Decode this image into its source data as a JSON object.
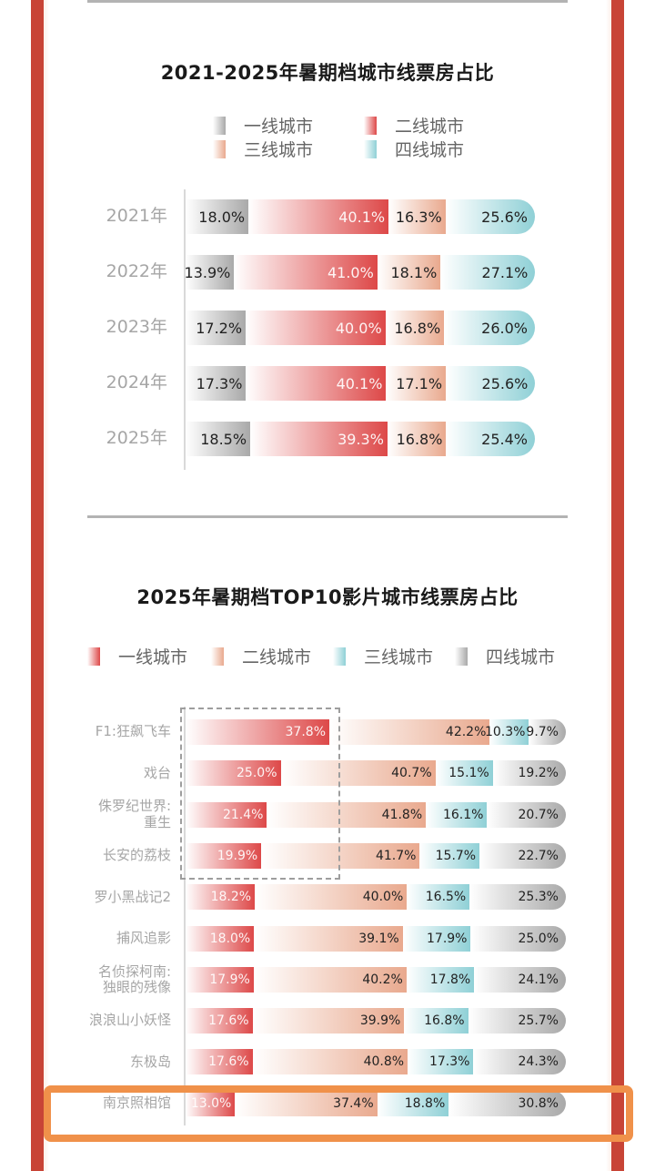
{
  "colors": {
    "frame": "#c84436",
    "highlight": "#f0914a",
    "tier1_c1": "#a9a9a9",
    "tier2_c1": "#dd4848",
    "tier3_c1": "#e9a98e",
    "tier4_c1": "#8fd0d6",
    "tier1_c2": "#dd4848",
    "tier2_c2": "#e9a98e",
    "tier3_c2": "#8fd0d6",
    "tier4_c2": "#a9a9a9"
  },
  "chart_data": [
    {
      "type": "bar",
      "orientation": "horizontal-stacked",
      "title": "2021-2025年暑期档城市线票房占比",
      "legend": [
        "一线城市",
        "二线城市",
        "三线城市",
        "四线城市"
      ],
      "legend_position": "top",
      "categories": [
        "2021年",
        "2022年",
        "2023年",
        "2024年",
        "2025年"
      ],
      "series": [
        {
          "name": "一线城市",
          "values": [
            18.0,
            13.9,
            17.2,
            17.3,
            18.5
          ]
        },
        {
          "name": "二线城市",
          "values": [
            40.1,
            41.0,
            40.0,
            40.1,
            39.3
          ]
        },
        {
          "name": "三线城市",
          "values": [
            16.3,
            18.1,
            16.8,
            17.1,
            16.8
          ]
        },
        {
          "name": "四线城市",
          "values": [
            25.6,
            27.1,
            26.0,
            25.6,
            25.4
          ]
        }
      ],
      "labels": [
        [
          "18.0%",
          "40.1%",
          "16.3%",
          "25.6%"
        ],
        [
          "13.9%",
          "41.0%",
          "18.1%",
          "27.1%"
        ],
        [
          "17.2%",
          "40.0%",
          "16.8%",
          "26.0%"
        ],
        [
          "17.3%",
          "40.1%",
          "17.1%",
          "25.6%"
        ],
        [
          "18.5%",
          "39.3%",
          "16.8%",
          "25.4%"
        ]
      ],
      "xlim": [
        0,
        100
      ],
      "unit": "%"
    },
    {
      "type": "bar",
      "orientation": "horizontal-stacked",
      "title": "2025年暑期档TOP10影片城市线票房占比",
      "legend": [
        "一线城市",
        "二线城市",
        "三线城市",
        "四线城市"
      ],
      "legend_position": "top",
      "categories": [
        "F1:狂飙飞车",
        "戏台",
        "侏罗纪世界:\n重生",
        "长安的荔枝",
        "罗小黑战记2",
        "捕风追影",
        "名侦探柯南:\n独眼的残像",
        "浪浪山小妖怪",
        "东极岛",
        "南京照相馆"
      ],
      "series": [
        {
          "name": "一线城市",
          "values": [
            37.8,
            25.0,
            21.4,
            19.9,
            18.2,
            18.0,
            17.9,
            17.6,
            17.6,
            13.0
          ]
        },
        {
          "name": "二线城市",
          "values": [
            42.2,
            40.7,
            41.8,
            41.7,
            40.0,
            39.1,
            40.2,
            39.9,
            40.8,
            37.4
          ]
        },
        {
          "name": "三线城市",
          "values": [
            10.3,
            15.1,
            16.1,
            15.7,
            16.5,
            17.9,
            17.8,
            16.8,
            17.3,
            18.8
          ]
        },
        {
          "name": "四线城市",
          "values": [
            9.7,
            19.2,
            20.7,
            22.7,
            25.3,
            25.0,
            24.1,
            25.7,
            24.3,
            30.8
          ]
        }
      ],
      "labels": [
        [
          "37.8%",
          "42.2%",
          "10.3%",
          "9.7%"
        ],
        [
          "25.0%",
          "40.7%",
          "15.1%",
          "19.2%"
        ],
        [
          "21.4%",
          "41.8%",
          "16.1%",
          "20.7%"
        ],
        [
          "19.9%",
          "41.7%",
          "15.7%",
          "22.7%"
        ],
        [
          "18.2%",
          "40.0%",
          "16.5%",
          "25.3%"
        ],
        [
          "18.0%",
          "39.1%",
          "17.9%",
          "25.0%"
        ],
        [
          "17.9%",
          "40.2%",
          "17.8%",
          "24.1%"
        ],
        [
          "17.6%",
          "39.9%",
          "16.8%",
          "25.7%"
        ],
        [
          "17.6%",
          "40.8%",
          "17.3%",
          "24.3%"
        ],
        [
          "13.0%",
          "37.4%",
          "18.8%",
          "30.8%"
        ]
      ],
      "annotations": [
        "dashed box around 一线城市 segments of top 4 films",
        "orange highlight box around 南京照相馆 row"
      ],
      "xlim": [
        0,
        100
      ],
      "unit": "%"
    }
  ]
}
